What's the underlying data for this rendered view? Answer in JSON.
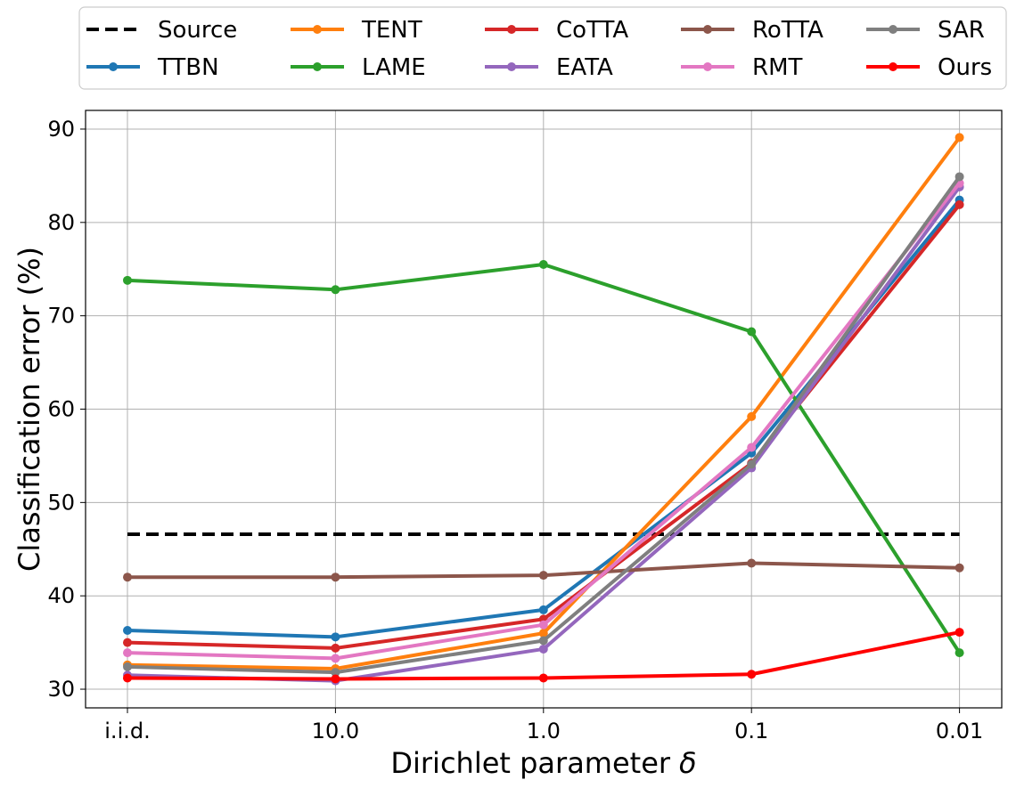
{
  "chart_data": {
    "type": "line",
    "title": "",
    "xlabel": "Dirichlet parameter",
    "xlabel_symbol": "δ",
    "ylabel": "Classification error (%)",
    "categories": [
      "i.i.d.",
      "10.0",
      "1.0",
      "0.1",
      "0.01"
    ],
    "ylim": [
      28,
      92
    ],
    "yticks": [
      30,
      40,
      50,
      60,
      70,
      80,
      90
    ],
    "grid": true,
    "legend_position": "top, outside, 5 columns",
    "series": [
      {
        "name": "Source",
        "color": "#000000",
        "style": "dashed",
        "markers": false,
        "values": [
          46.6,
          46.6,
          46.6,
          46.6,
          46.6
        ]
      },
      {
        "name": "TTBN",
        "color": "#1f77b4",
        "style": "solid",
        "markers": true,
        "values": [
          36.3,
          35.6,
          38.5,
          55.3,
          82.4
        ]
      },
      {
        "name": "TENT",
        "color": "#ff7f0e",
        "style": "solid",
        "markers": true,
        "values": [
          32.6,
          32.2,
          36.0,
          59.2,
          89.1
        ]
      },
      {
        "name": "LAME",
        "color": "#2ca02c",
        "style": "solid",
        "markers": true,
        "values": [
          73.8,
          72.8,
          75.5,
          68.3,
          33.9
        ]
      },
      {
        "name": "CoTTA",
        "color": "#d62728",
        "style": "solid",
        "markers": true,
        "values": [
          35.0,
          34.4,
          37.5,
          54.2,
          81.9
        ]
      },
      {
        "name": "EATA",
        "color": "#9467bd",
        "style": "solid",
        "markers": true,
        "values": [
          31.5,
          30.9,
          34.3,
          53.7,
          83.8
        ]
      },
      {
        "name": "RoTTA",
        "color": "#8c564b",
        "style": "solid",
        "markers": true,
        "values": [
          42.0,
          42.0,
          42.2,
          43.5,
          43.0
        ]
      },
      {
        "name": "RMT",
        "color": "#e377c2",
        "style": "solid",
        "markers": true,
        "values": [
          33.9,
          33.3,
          36.9,
          55.9,
          84.2
        ]
      },
      {
        "name": "SAR",
        "color": "#7f7f7f",
        "style": "solid",
        "markers": true,
        "values": [
          32.4,
          31.8,
          35.2,
          54.1,
          84.9
        ]
      },
      {
        "name": "Ours",
        "color": "#ff0000",
        "style": "solid",
        "markers": true,
        "values": [
          31.2,
          31.1,
          31.2,
          31.6,
          36.1
        ]
      }
    ]
  }
}
